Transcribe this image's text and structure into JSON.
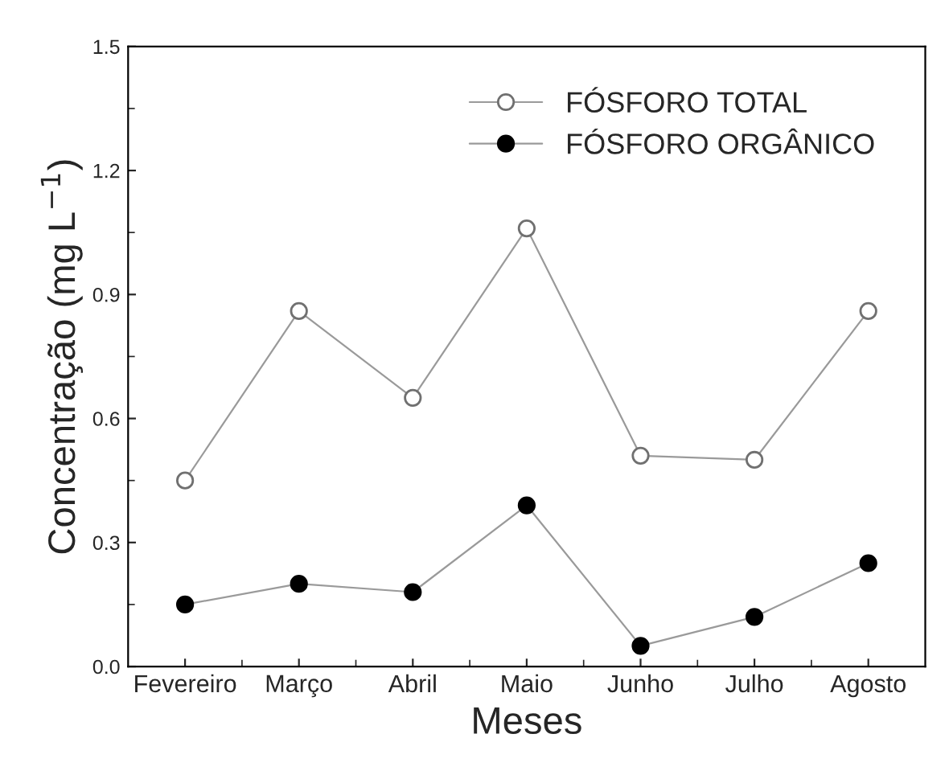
{
  "chart_data": {
    "type": "line",
    "xlabel": "Meses",
    "ylabel": "Concentração (mg L$^{−1}$)",
    "categories": [
      "Fevereiro",
      "Março",
      "Abril",
      "Maio",
      "Junho",
      "Julho",
      "Agosto"
    ],
    "series": [
      {
        "name": "FÓSFORO TOTAL",
        "color": "#ffffff",
        "values": [
          0.45,
          0.86,
          0.65,
          1.06,
          0.51,
          0.5,
          0.86
        ]
      },
      {
        "name": "FÓSFORO ORGÂNICO",
        "color": "#000000",
        "values": [
          0.15,
          0.2,
          0.18,
          0.39,
          0.05,
          0.12,
          0.25
        ]
      }
    ],
    "ylim": [
      0,
      1.5
    ],
    "yticks": [
      {
        "value": 0,
        "label": "0.0"
      },
      0.3,
      0.6,
      0.9,
      1.2,
      1.5
    ],
    "grid": false,
    "legend": "top right",
    "marker": "circle",
    "line_style": "solid"
  }
}
